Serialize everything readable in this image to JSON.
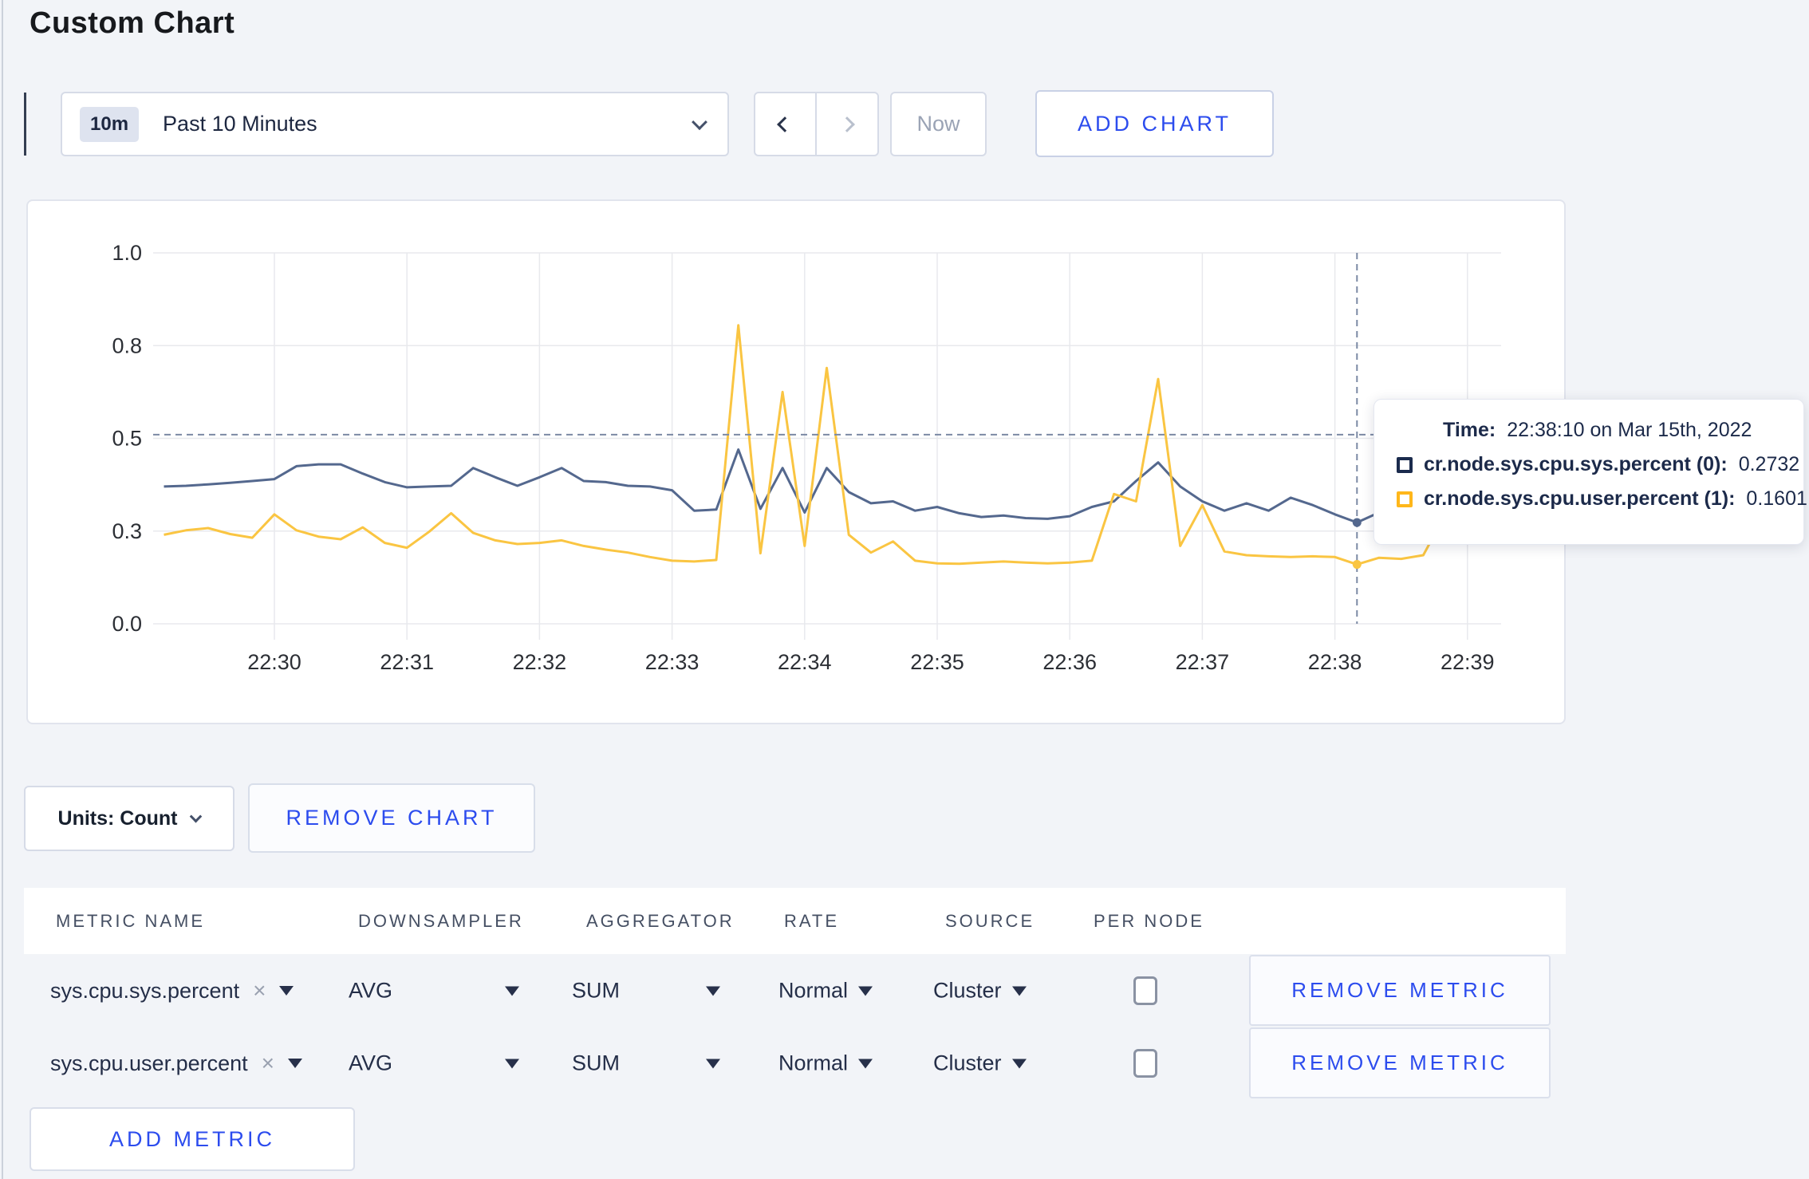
{
  "page": {
    "title": "Custom Chart"
  },
  "toolbar": {
    "time_range": {
      "badge": "10m",
      "label": "Past 10 Minutes"
    },
    "now_label": "Now",
    "add_chart_label": "ADD CHART",
    "prev_enabled": true,
    "next_enabled": false,
    "now_enabled": false
  },
  "icons": {
    "time_dropdown": "chevron-down",
    "prev": "chevron-left",
    "next": "chevron-right",
    "units_dropdown": "chevron-down",
    "select_caret": "triangle-down",
    "remove_tag_glyph": "×"
  },
  "chart_data": {
    "type": "line",
    "title": "",
    "xlabel": "",
    "ylabel": "",
    "grid": true,
    "legend_position": "tooltip",
    "ylim": [
      0,
      1
    ],
    "x_ticks": [
      "22:30",
      "22:31",
      "22:32",
      "22:33",
      "22:34",
      "22:35",
      "22:36",
      "22:37",
      "22:38",
      "22:39"
    ],
    "y_ticks": [
      {
        "label": "1.0",
        "value": 1.0
      },
      {
        "label": "0.8",
        "value": 0.75
      },
      {
        "label": "0.5",
        "value": 0.5
      },
      {
        "label": "0.3",
        "value": 0.25
      },
      {
        "label": "0.0",
        "value": 0.0
      }
    ],
    "start_time": "22:29:10",
    "interval_seconds": 10,
    "series": [
      {
        "name": "cr.node.sys.cpu.sys.percent (0)",
        "color": "#54688e",
        "values": [
          0.37,
          0.372,
          0.376,
          0.38,
          0.385,
          0.39,
          0.425,
          0.43,
          0.43,
          0.405,
          0.382,
          0.368,
          0.37,
          0.372,
          0.42,
          0.395,
          0.372,
          0.395,
          0.42,
          0.385,
          0.382,
          0.372,
          0.37,
          0.36,
          0.305,
          0.308,
          0.47,
          0.31,
          0.42,
          0.3,
          0.42,
          0.355,
          0.325,
          0.33,
          0.305,
          0.315,
          0.298,
          0.288,
          0.292,
          0.285,
          0.283,
          0.29,
          0.315,
          0.33,
          0.385,
          0.435,
          0.37,
          0.33,
          0.305,
          0.325,
          0.305,
          0.34,
          0.32,
          0.295,
          0.2732,
          0.3,
          0.295,
          0.308,
          0.312,
          0.325,
          0.3
        ]
      },
      {
        "name": "cr.node.sys.cpu.user.percent (1)",
        "color": "#fac542",
        "values": [
          0.24,
          0.252,
          0.258,
          0.242,
          0.232,
          0.295,
          0.252,
          0.235,
          0.228,
          0.26,
          0.218,
          0.205,
          0.248,
          0.298,
          0.245,
          0.225,
          0.215,
          0.218,
          0.225,
          0.21,
          0.2,
          0.192,
          0.18,
          0.17,
          0.168,
          0.172,
          0.805,
          0.19,
          0.625,
          0.21,
          0.69,
          0.24,
          0.192,
          0.222,
          0.17,
          0.163,
          0.162,
          0.165,
          0.168,
          0.165,
          0.163,
          0.165,
          0.17,
          0.35,
          0.33,
          0.66,
          0.21,
          0.32,
          0.195,
          0.185,
          0.182,
          0.18,
          0.182,
          0.18,
          0.1601,
          0.178,
          0.175,
          0.185,
          0.295,
          0.225,
          0.27
        ]
      }
    ]
  },
  "crosshair": {
    "time": "22:38:10",
    "mouse_value": 0.51
  },
  "tooltip": {
    "time_label": "Time:",
    "time_value": "22:38:10 on Mar 15th, 2022",
    "rows": [
      {
        "name": "cr.node.sys.cpu.sys.percent (0):",
        "value": "0.2732",
        "color": "#1b2b4d"
      },
      {
        "name": "cr.node.sys.cpu.user.percent (1):",
        "value": "0.1601",
        "color": "#ffb71a"
      }
    ]
  },
  "chart_controls": {
    "units_label": "Units: Count",
    "remove_chart_label": "REMOVE CHART"
  },
  "metrics_table": {
    "headers": [
      "METRIC NAME",
      "DOWNSAMPLER",
      "AGGREGATOR",
      "RATE",
      "SOURCE",
      "PER NODE"
    ],
    "rows": [
      {
        "metric": "sys.cpu.sys.percent",
        "downsampler": "AVG",
        "aggregator": "SUM",
        "rate": "Normal",
        "source": "Cluster",
        "per_node": false,
        "remove_label": "REMOVE METRIC"
      },
      {
        "metric": "sys.cpu.user.percent",
        "downsampler": "AVG",
        "aggregator": "SUM",
        "rate": "Normal",
        "source": "Cluster",
        "per_node": false,
        "remove_label": "REMOVE METRIC"
      }
    ],
    "add_metric_label": "ADD METRIC"
  },
  "colors": {
    "accent_blue": "#2c4cee",
    "page_bg": "#f2f4f8",
    "navy_text": "#1e2a47",
    "gridline": "#e8e9ed",
    "guideline": "#7b89a4"
  }
}
